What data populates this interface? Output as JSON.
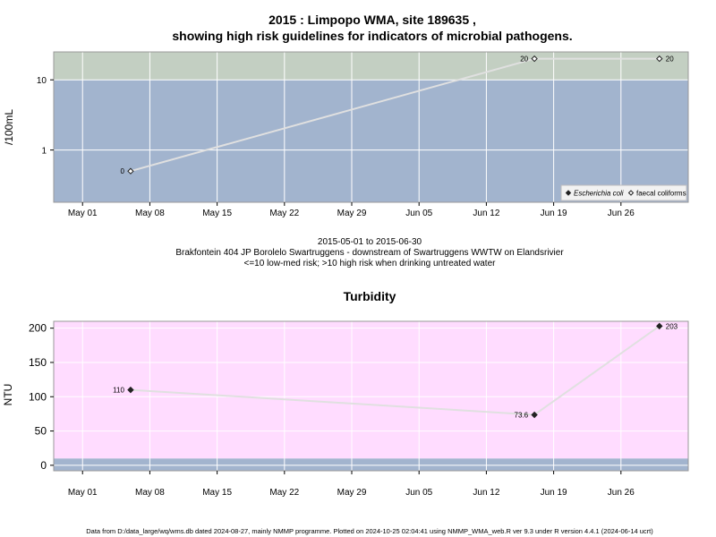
{
  "figure": {
    "title_line1": "2015 : Limpopo WMA, site 189635 ,",
    "title_line2": "showing high risk guidelines for indicators of microbial pathogens.",
    "footer": "Data from D:/data_large/wq/wms.db dated 2024-08-27, mainly NMMP programme. Plotted on 2024-10-25 02:04:41 using NMMP_WMA_web.R ver 9.3 under R version 4.4.1 (2024-06-14 ucrt)"
  },
  "colors": {
    "plot_blue": "#a2b4ce",
    "plot_green": "#c3cfc2",
    "plot_pink": "#ffdcff",
    "line": "#e0e0e0",
    "grid": "#ffffff",
    "frame": "#999999"
  },
  "chart_data": [
    {
      "type": "line",
      "title": "",
      "ylabel": "/100mL",
      "yscale": "log",
      "ylim": [
        0.18,
        25
      ],
      "xlim": [
        "2015-04-28",
        "2015-07-03"
      ],
      "x_ticks": [
        "2015-05-01",
        "2015-05-08",
        "2015-05-15",
        "2015-05-22",
        "2015-05-29",
        "2015-06-05",
        "2015-06-12",
        "2015-06-19",
        "2015-06-26"
      ],
      "x_tick_labels": [
        "May 01",
        "May 08",
        "May 15",
        "May 22",
        "May 29",
        "Jun 05",
        "Jun 12",
        "Jun 19",
        "Jun 26"
      ],
      "y_ticks": [
        1,
        10
      ],
      "y_tick_labels": [
        "1",
        "10"
      ],
      "bands": [
        {
          "from": 0.18,
          "to": 10,
          "color": "#a2b4ce",
          "meaning": "low-med risk"
        },
        {
          "from": 10,
          "to": 25,
          "color": "#c3cfc2",
          "meaning": "high risk"
        }
      ],
      "series": [
        {
          "name": "faecal coliforms",
          "marker": "open-diamond",
          "x": [
            "2015-05-06",
            "2015-06-17",
            "2015-06-30"
          ],
          "y": [
            0.5,
            20,
            20
          ],
          "labels": [
            "0",
            "20",
            "20"
          ]
        }
      ],
      "legend": {
        "position": "bottom-right",
        "entries": [
          {
            "label": "Escherichia coli",
            "marker": "filled-diamond",
            "italic": true
          },
          {
            "label": "faecal coliforms",
            "marker": "open-diamond",
            "italic": false
          }
        ]
      },
      "xlabel_lines": [
        "2015-05-01 to 2015-06-30",
        "Brakfontein 404 JP Borolelo Swartruggens - downstream of Swartruggens WWTW on Elandsrivier",
        "<=10 low-med risk; >10 high risk when drinking untreated water"
      ],
      "grid": true
    },
    {
      "type": "line",
      "title": "Turbidity",
      "ylabel": "NTU",
      "yscale": "linear",
      "ylim": [
        -8,
        210
      ],
      "xlim": [
        "2015-04-28",
        "2015-07-03"
      ],
      "x_ticks": [
        "2015-05-01",
        "2015-05-08",
        "2015-05-15",
        "2015-05-22",
        "2015-05-29",
        "2015-06-05",
        "2015-06-12",
        "2015-06-19",
        "2015-06-26"
      ],
      "x_tick_labels": [
        "May 01",
        "May 08",
        "May 15",
        "May 22",
        "May 29",
        "Jun 05",
        "Jun 12",
        "Jun 19",
        "Jun 26"
      ],
      "y_ticks": [
        0,
        50,
        100,
        150,
        200
      ],
      "y_tick_labels": [
        "0",
        "50",
        "100",
        "150",
        "200"
      ],
      "bands": [
        {
          "from": -8,
          "to": 10,
          "color": "#a2b4ce"
        },
        {
          "from": 10,
          "to": 210,
          "color": "#ffdcff"
        }
      ],
      "series": [
        {
          "name": "",
          "marker": "filled-diamond",
          "x": [
            "2015-05-06",
            "2015-06-17",
            "2015-06-30"
          ],
          "y": [
            110,
            73.6,
            203
          ],
          "labels": [
            "110",
            "73.6",
            "203"
          ]
        }
      ],
      "grid": true
    }
  ]
}
